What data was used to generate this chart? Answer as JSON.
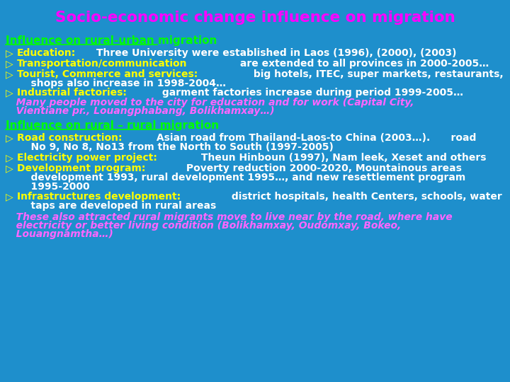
{
  "title": "Socio-economic change influence on migration",
  "title_color": "#FF00FF",
  "bg_color": "#1E8FCC",
  "section1_heading": "Influence on rural-urban migration",
  "section1_heading_color": "#00FF00",
  "section2_heading": "Influence on rural – rural migration",
  "section2_heading_color": "#00FF00",
  "bullet_color": "#FFFF00",
  "white_color": "#FFFFFF",
  "pink_color": "#FF66FF",
  "title_fontsize": 15.5,
  "heading_fontsize": 11,
  "body_fontsize": 10,
  "section1_bullets": [
    [
      "Education:",
      " Three University were established in Laos (1996), (2000), (2003)"
    ],
    [
      "Transportation/communication",
      " are extended to all provinces in 2000-2005…"
    ],
    [
      "Tourist, Commerce and services:",
      " big hotels, ITEC, super markets, restaurants,"
    ],
    [
      null,
      "    shops also increase in 1998-2004…"
    ],
    [
      "Industrial factories:",
      " garment factories increase during period 1999-2005…"
    ]
  ],
  "section1_italic_line1": "   Many people moved to the city for education and for work (Capital City,",
  "section1_italic_line2": "   Vientiane pr., Louangphabang, Bolikhamxay…)",
  "section2_bullets": [
    [
      "Road construction:",
      " Asian road from Thailand-Laos-to China (2003…).      road"
    ],
    [
      null,
      "    No 9, No 8, No13 from the North to South (1997-2005)"
    ],
    [
      "Electricity power project:",
      " Theun Hinboun (1997), Nam leek, Xeset and others"
    ],
    [
      "Development program:",
      " Poverty reduction 2000-2020, Mountainous areas"
    ],
    [
      null,
      "    development 1993, rural development 1995…, and new resettlement program"
    ],
    [
      null,
      "    1995-2000"
    ],
    [
      "Infrastructures development:",
      " district hospitals, health Centers, schools, water"
    ],
    [
      null,
      "    taps are developed in rural areas"
    ]
  ],
  "section2_italic_line1": "   These also attracted rural migrants move to live near by the road, where have",
  "section2_italic_line2": "   electricity or better living condition (Bolikhamxay, Oudomxay, Bokeo,",
  "section2_italic_line3": "   Louangnamtha…)"
}
